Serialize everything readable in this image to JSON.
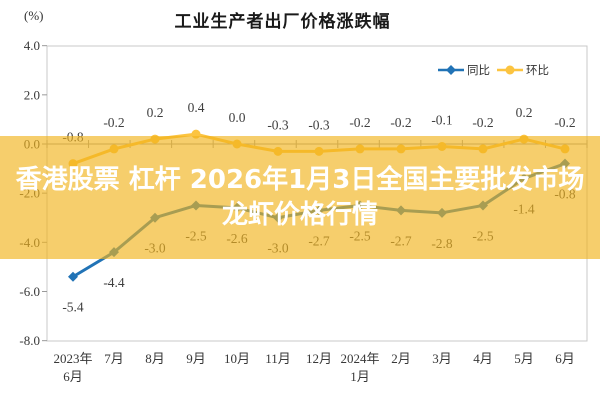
{
  "overlay_banner": {
    "line1": "香港股票 杠杆 2026年1月3日全国主要批发市场",
    "line2": "龙虾价格行情",
    "background": "rgba(241,180,29,0.65)",
    "text_color": "#ffffff"
  },
  "chart_data": {
    "type": "line",
    "title": "工业生产者出厂价格涨跌幅",
    "unit_label": "(%)",
    "categories": [
      "2023年\n6月",
      "7月",
      "8月",
      "9月",
      "10月",
      "11月",
      "12月",
      "2024年\n1月",
      "2月",
      "3月",
      "4月",
      "5月",
      "6月"
    ],
    "series": [
      {
        "name": "同比",
        "color": "#2173b6",
        "marker": "diamond",
        "label_side": "below",
        "values": [
          -5.4,
          -4.4,
          -3.0,
          -2.5,
          -2.6,
          -3.0,
          -2.7,
          -2.5,
          -2.7,
          -2.8,
          -2.5,
          -1.4,
          -0.8
        ]
      },
      {
        "name": "环比",
        "color": "#fcc440",
        "marker": "circle",
        "label_side": "above",
        "values": [
          -0.8,
          -0.2,
          0.2,
          0.4,
          0.0,
          -0.3,
          -0.3,
          -0.2,
          -0.2,
          -0.1,
          -0.2,
          0.2,
          -0.2
        ]
      }
    ],
    "ylim": [
      -8.0,
      4.0
    ],
    "yticks": [
      4.0,
      2.0,
      0.0,
      -2.0,
      -4.0,
      -6.0,
      -8.0
    ],
    "legend_position": "top-right",
    "grid": false,
    "label_color": "#3f3f3f",
    "tick_label_color": "#383838",
    "axis_color": "#9a9a9a",
    "border_color": "#c9c9c9"
  }
}
